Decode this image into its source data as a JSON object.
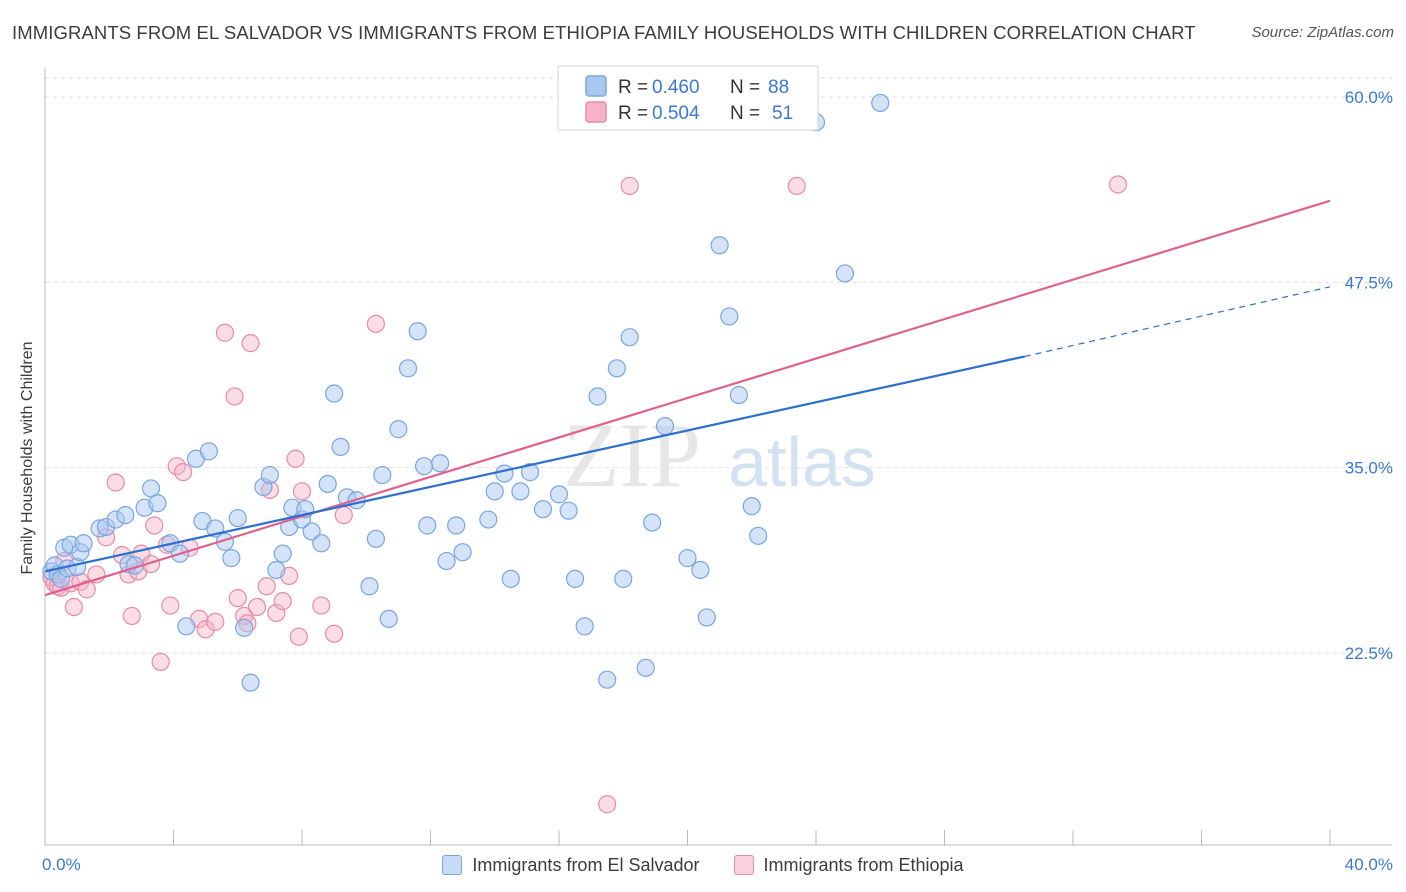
{
  "title": "IMMIGRANTS FROM EL SALVADOR VS IMMIGRANTS FROM ETHIOPIA FAMILY HOUSEHOLDS WITH CHILDREN CORRELATION CHART",
  "source": "Source: ZipAtlas.com",
  "watermark": {
    "zip": "ZIP",
    "atlas": "atlas"
  },
  "legend_top": [
    {
      "r_label": "R = ",
      "r_value": "0.460",
      "n_label": "N = ",
      "n_value": "88"
    },
    {
      "r_label": "R = ",
      "r_value": "0.504",
      "n_label": "N = ",
      "n_value": "51"
    }
  ],
  "legend_bottom": [
    {
      "label": "Immigrants from El Salvador"
    },
    {
      "label": "Immigrants from Ethiopia"
    }
  ],
  "colors": {
    "blue_fill": "#a9c8f0",
    "blue_stroke": "#7aa6e0",
    "blue_line": "#2b6fcf",
    "pink_fill": "#f6b3c8",
    "pink_stroke": "#e98aa9",
    "pink_line": "#e0608e",
    "value_text": "#3a78d4",
    "grid": "#dddddd",
    "axis": "#bbbbbb"
  },
  "chart_data": {
    "type": "scatter",
    "title": "IMMIGRANTS FROM EL SALVADOR VS IMMIGRANTS FROM ETHIOPIA FAMILY HOUSEHOLDS WITH CHILDREN CORRELATION CHART",
    "xlabel": "",
    "ylabel": "Family Households with Children",
    "xlim": [
      0,
      40
    ],
    "ylim": [
      10,
      61.5
    ],
    "x_tick_labels": [
      "0.0%",
      "40.0%"
    ],
    "y_ticks": [
      22.5,
      35.0,
      47.5,
      60.0
    ],
    "y_tick_labels": [
      "22.5%",
      "35.0%",
      "47.5%",
      "60.0%"
    ],
    "grid": true,
    "legend_position": "top-center",
    "series": [
      {
        "name": "Immigrants from El Salvador",
        "r": 0.46,
        "n": 88,
        "trend": {
          "x0": 0,
          "y0": 28.0,
          "x1": 30.5,
          "y1": 42.5,
          "dashed_to_x": 40,
          "dashed_to_y": 47.2
        },
        "points": [
          [
            0.2,
            28.0
          ],
          [
            0.3,
            28.4
          ],
          [
            0.4,
            27.8
          ],
          [
            0.5,
            27.5
          ],
          [
            0.6,
            29.6
          ],
          [
            0.7,
            28.2
          ],
          [
            0.8,
            29.8
          ],
          [
            1.0,
            28.3
          ],
          [
            1.1,
            29.3
          ],
          [
            1.2,
            29.9
          ],
          [
            1.7,
            30.9
          ],
          [
            1.9,
            31.0
          ],
          [
            2.2,
            31.5
          ],
          [
            2.5,
            31.8
          ],
          [
            2.6,
            28.5
          ],
          [
            2.8,
            28.4
          ],
          [
            3.1,
            32.3
          ],
          [
            3.3,
            33.6
          ],
          [
            3.5,
            32.6
          ],
          [
            3.9,
            29.9
          ],
          [
            4.2,
            29.2
          ],
          [
            4.4,
            24.3
          ],
          [
            4.7,
            35.6
          ],
          [
            4.9,
            31.4
          ],
          [
            5.1,
            36.1
          ],
          [
            5.3,
            30.9
          ],
          [
            5.6,
            30.0
          ],
          [
            5.8,
            28.9
          ],
          [
            6.0,
            31.6
          ],
          [
            6.2,
            24.2
          ],
          [
            6.4,
            20.5
          ],
          [
            6.8,
            33.7
          ],
          [
            7.0,
            34.5
          ],
          [
            7.2,
            28.1
          ],
          [
            7.4,
            29.2
          ],
          [
            7.6,
            31.0
          ],
          [
            7.7,
            32.3
          ],
          [
            8.0,
            31.5
          ],
          [
            8.1,
            32.2
          ],
          [
            8.3,
            30.7
          ],
          [
            8.6,
            29.9
          ],
          [
            8.8,
            33.9
          ],
          [
            9.0,
            40.0
          ],
          [
            9.2,
            36.4
          ],
          [
            9.4,
            33.0
          ],
          [
            9.7,
            32.8
          ],
          [
            10.1,
            27.0
          ],
          [
            10.3,
            30.2
          ],
          [
            10.5,
            34.5
          ],
          [
            10.7,
            24.8
          ],
          [
            11.0,
            37.6
          ],
          [
            11.3,
            41.7
          ],
          [
            11.6,
            44.2
          ],
          [
            11.8,
            35.1
          ],
          [
            11.9,
            31.1
          ],
          [
            12.3,
            35.3
          ],
          [
            12.5,
            28.7
          ],
          [
            12.8,
            31.1
          ],
          [
            13.0,
            29.3
          ],
          [
            13.8,
            31.5
          ],
          [
            14.0,
            33.4
          ],
          [
            14.3,
            34.6
          ],
          [
            14.5,
            27.5
          ],
          [
            14.8,
            33.4
          ],
          [
            15.1,
            34.7
          ],
          [
            15.5,
            32.2
          ],
          [
            16.0,
            33.2
          ],
          [
            16.3,
            32.1
          ],
          [
            16.5,
            27.5
          ],
          [
            16.8,
            24.3
          ],
          [
            17.2,
            39.8
          ],
          [
            17.5,
            20.7
          ],
          [
            17.8,
            41.7
          ],
          [
            18.0,
            27.5
          ],
          [
            18.2,
            43.8
          ],
          [
            18.7,
            21.5
          ],
          [
            18.9,
            31.3
          ],
          [
            19.3,
            37.8
          ],
          [
            20.0,
            28.9
          ],
          [
            20.4,
            28.1
          ],
          [
            20.6,
            24.9
          ],
          [
            21.0,
            50.0
          ],
          [
            21.3,
            45.2
          ],
          [
            21.6,
            39.9
          ],
          [
            22.0,
            32.4
          ],
          [
            22.2,
            30.4
          ],
          [
            24.0,
            58.3
          ],
          [
            24.9,
            48.1
          ],
          [
            26.0,
            59.6
          ]
        ]
      },
      {
        "name": "Immigrants from Ethiopia",
        "r": 0.504,
        "n": 51,
        "trend": {
          "x0": 0,
          "y0": 26.4,
          "x1": 40,
          "y1": 53.0
        },
        "points": [
          [
            0.2,
            27.6
          ],
          [
            0.3,
            27.2
          ],
          [
            0.4,
            27.0
          ],
          [
            0.5,
            26.9
          ],
          [
            0.6,
            28.7
          ],
          [
            0.8,
            27.2
          ],
          [
            0.9,
            25.6
          ],
          [
            1.1,
            27.3
          ],
          [
            1.3,
            26.8
          ],
          [
            1.6,
            27.8
          ],
          [
            1.9,
            30.3
          ],
          [
            2.2,
            34.0
          ],
          [
            2.4,
            29.1
          ],
          [
            2.6,
            27.8
          ],
          [
            2.7,
            25.0
          ],
          [
            2.9,
            28.0
          ],
          [
            3.0,
            29.2
          ],
          [
            3.3,
            28.5
          ],
          [
            3.4,
            31.1
          ],
          [
            3.6,
            21.9
          ],
          [
            3.8,
            29.8
          ],
          [
            3.9,
            25.7
          ],
          [
            4.1,
            35.1
          ],
          [
            4.3,
            34.7
          ],
          [
            4.5,
            29.6
          ],
          [
            4.8,
            24.8
          ],
          [
            5.0,
            24.1
          ],
          [
            5.3,
            24.6
          ],
          [
            5.6,
            44.1
          ],
          [
            5.9,
            39.8
          ],
          [
            6.0,
            26.2
          ],
          [
            6.2,
            25.0
          ],
          [
            6.3,
            24.5
          ],
          [
            6.4,
            43.4
          ],
          [
            6.6,
            25.6
          ],
          [
            6.9,
            27.0
          ],
          [
            7.0,
            33.5
          ],
          [
            7.2,
            25.2
          ],
          [
            7.4,
            26.0
          ],
          [
            7.6,
            27.7
          ],
          [
            7.8,
            35.6
          ],
          [
            7.9,
            23.6
          ],
          [
            8.0,
            33.4
          ],
          [
            8.6,
            25.7
          ],
          [
            9.0,
            23.8
          ],
          [
            9.3,
            31.8
          ],
          [
            10.3,
            44.7
          ],
          [
            17.5,
            12.3
          ],
          [
            18.2,
            54.0
          ],
          [
            23.4,
            54.0
          ],
          [
            33.4,
            54.1
          ]
        ]
      }
    ]
  }
}
